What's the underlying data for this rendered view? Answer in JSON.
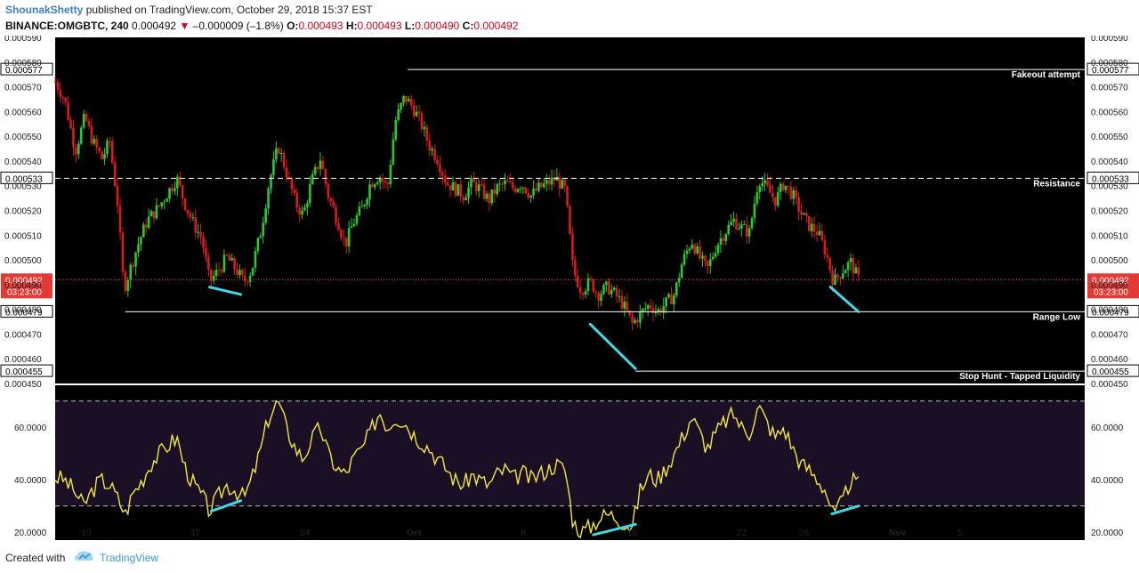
{
  "header": {
    "author": "ShounakShetty",
    "published_text": "published on TradingView.com, October 29, 2018 15:37 EST",
    "symbol": "BINANCE:OMGBTC, 240",
    "last": "0.000492",
    "change_arrow": "▼",
    "change": "–0.000009 (–1.8%)",
    "o_label": "O:",
    "o_value": "0.000493",
    "h_label": "H:",
    "h_value": "0.000493",
    "l_label": "L:",
    "l_value": "0.000490",
    "c_label": "C:",
    "c_value": "0.000492"
  },
  "footer": {
    "created_with": "Created with",
    "brand": "TradingView"
  },
  "colors": {
    "background": "#000000",
    "up": "#2ec72e",
    "down": "#d81b1b",
    "rsi": "#f5e642",
    "divergence": "#3fd9e6",
    "level_line": "#ffffff",
    "current_price": "#e53935",
    "rsi_band": "#1a0f24"
  },
  "chart_data": [
    {
      "type": "candlestick",
      "title": "",
      "ylim": [
        0.00045,
        0.00059
      ],
      "y_ticks": [
        "0.000590",
        "0.000580",
        "0.000570",
        "0.000560",
        "0.000550",
        "0.000540",
        "0.000530",
        "0.000520",
        "0.000510",
        "0.000500",
        "0.000490",
        "0.000480",
        "0.000470",
        "0.000460",
        "0.000450"
      ],
      "x_ticks": [
        "10",
        "17",
        "24",
        "Oct",
        "8",
        "15",
        "22",
        "26",
        "Nov",
        "5"
      ],
      "x_tick_days": [
        10,
        17,
        24,
        31,
        38,
        45,
        52,
        56,
        62,
        66
      ],
      "x_range_days": [
        8,
        74
      ],
      "current_price": "0.000492",
      "countdown": "03:23:00",
      "levels": [
        {
          "label": "Fakeout attempt",
          "price": 0.000577,
          "price_text": "0.000577",
          "from_day": 30.6,
          "style": "solid"
        },
        {
          "label": "Resistance",
          "price": 0.000533,
          "price_text": "0.000533",
          "from_day": 8,
          "style": "dashed"
        },
        {
          "label": "Range Low",
          "price": 0.000479,
          "price_text": "0.000479",
          "from_day": 12.5,
          "style": "solid"
        },
        {
          "label": "Stop Hunt - Tapped Liquidity",
          "price": 0.000455,
          "price_text": "0.000455",
          "from_day": 45.2,
          "style": "solid"
        }
      ],
      "divergence_lines": [
        {
          "x1": 17.9,
          "y1": 0.000489,
          "x2": 19.9,
          "y2": 0.000486
        },
        {
          "x1": 42.3,
          "y1": 0.000474,
          "x2": 45.2,
          "y2": 0.000456
        },
        {
          "x1": 57.7,
          "y1": 0.000489,
          "x2": 59.5,
          "y2": 0.000479
        }
      ],
      "price_path": [
        [
          8.0,
          0.000572
        ],
        [
          8.6,
          0.000565
        ],
        [
          9.3,
          0.000544
        ],
        [
          9.9,
          0.000558
        ],
        [
          10.4,
          0.000548
        ],
        [
          11.0,
          0.000541
        ],
        [
          11.5,
          0.000548
        ],
        [
          12.0,
          0.000523
        ],
        [
          12.4,
          0.000488
        ],
        [
          12.8,
          0.000496
        ],
        [
          13.3,
          0.000506
        ],
        [
          13.9,
          0.000516
        ],
        [
          14.6,
          0.000521
        ],
        [
          15.2,
          0.000527
        ],
        [
          15.8,
          0.000533
        ],
        [
          16.3,
          0.000523
        ],
        [
          16.9,
          0.000514
        ],
        [
          17.4,
          0.000509
        ],
        [
          17.9,
          0.000491
        ],
        [
          18.5,
          0.000496
        ],
        [
          19.0,
          0.000501
        ],
        [
          19.6,
          0.000496
        ],
        [
          20.1,
          0.000491
        ],
        [
          20.6,
          0.000496
        ],
        [
          21.2,
          0.000512
        ],
        [
          21.7,
          0.000531
        ],
        [
          22.3,
          0.000546
        ],
        [
          22.8,
          0.000536
        ],
        [
          23.4,
          0.000523
        ],
        [
          23.9,
          0.000518
        ],
        [
          24.4,
          0.000531
        ],
        [
          25.0,
          0.000541
        ],
        [
          25.5,
          0.000526
        ],
        [
          26.1,
          0.000516
        ],
        [
          26.6,
          0.000506
        ],
        [
          27.1,
          0.000515
        ],
        [
          27.7,
          0.000521
        ],
        [
          28.2,
          0.000531
        ],
        [
          28.8,
          0.000534
        ],
        [
          29.3,
          0.000529
        ],
        [
          29.8,
          0.000556
        ],
        [
          30.4,
          0.000566
        ],
        [
          30.9,
          0.000562
        ],
        [
          31.4,
          0.000556
        ],
        [
          32.0,
          0.000546
        ],
        [
          32.5,
          0.000541
        ],
        [
          33.1,
          0.000531
        ],
        [
          33.6,
          0.000529
        ],
        [
          34.2,
          0.000526
        ],
        [
          34.7,
          0.000531
        ],
        [
          35.2,
          0.000529
        ],
        [
          35.8,
          0.000524
        ],
        [
          36.3,
          0.000529
        ],
        [
          36.9,
          0.000531
        ],
        [
          37.4,
          0.000529
        ],
        [
          37.9,
          0.000531
        ],
        [
          38.5,
          0.000526
        ],
        [
          39.0,
          0.000529
        ],
        [
          39.6,
          0.000531
        ],
        [
          40.1,
          0.000533
        ],
        [
          40.7,
          0.000528
        ],
        [
          41.2,
          0.000496
        ],
        [
          41.7,
          0.000488
        ],
        [
          42.3,
          0.000491
        ],
        [
          42.8,
          0.000486
        ],
        [
          43.4,
          0.000489
        ],
        [
          43.9,
          0.000486
        ],
        [
          44.4,
          0.000482
        ],
        [
          45.0,
          0.000474
        ],
        [
          45.5,
          0.000478
        ],
        [
          46.1,
          0.000482
        ],
        [
          46.6,
          0.000479
        ],
        [
          47.1,
          0.000482
        ],
        [
          47.7,
          0.000486
        ],
        [
          48.2,
          0.000499
        ],
        [
          48.8,
          0.000508
        ],
        [
          49.3,
          0.000501
        ],
        [
          49.8,
          0.000496
        ],
        [
          50.4,
          0.000506
        ],
        [
          50.9,
          0.000511
        ],
        [
          51.5,
          0.000516
        ],
        [
          52.0,
          0.000513
        ],
        [
          52.5,
          0.000511
        ],
        [
          53.1,
          0.000533
        ],
        [
          53.6,
          0.000529
        ],
        [
          54.2,
          0.000524
        ],
        [
          54.7,
          0.000531
        ],
        [
          55.3,
          0.000526
        ],
        [
          55.8,
          0.000519
        ],
        [
          56.3,
          0.000514
        ],
        [
          56.9,
          0.000511
        ],
        [
          57.4,
          0.000503
        ],
        [
          57.9,
          0.000491
        ],
        [
          58.5,
          0.000496
        ],
        [
          59.0,
          0.000499
        ],
        [
          59.5,
          0.000492
        ]
      ]
    },
    {
      "type": "line",
      "title": "",
      "series_name": "",
      "ylim": [
        17,
        76
      ],
      "y_ticks": [
        "60.0000",
        "40.0000",
        "20.0000"
      ],
      "band": [
        30,
        70
      ],
      "divergence_lines": [
        {
          "x1": 18.0,
          "y1": 28,
          "x2": 19.9,
          "y2": 32
        },
        {
          "x1": 42.5,
          "y1": 19,
          "x2": 45.2,
          "y2": 23
        },
        {
          "x1": 57.8,
          "y1": 27,
          "x2": 59.5,
          "y2": 30
        }
      ],
      "values_path": [
        [
          8.0,
          41
        ],
        [
          8.6,
          40
        ],
        [
          9.2,
          36
        ],
        [
          9.8,
          30
        ],
        [
          10.4,
          36
        ],
        [
          10.9,
          40
        ],
        [
          11.5,
          38
        ],
        [
          12.0,
          33
        ],
        [
          12.5,
          27
        ],
        [
          13.0,
          35
        ],
        [
          13.6,
          40
        ],
        [
          14.1,
          46
        ],
        [
          14.7,
          50
        ],
        [
          15.2,
          53
        ],
        [
          15.8,
          56
        ],
        [
          16.3,
          45
        ],
        [
          16.9,
          38
        ],
        [
          17.4,
          34
        ],
        [
          17.9,
          28
        ],
        [
          18.5,
          34
        ],
        [
          19.0,
          38
        ],
        [
          19.6,
          36
        ],
        [
          20.1,
          33
        ],
        [
          20.6,
          40
        ],
        [
          21.2,
          52
        ],
        [
          21.7,
          64
        ],
        [
          22.3,
          70
        ],
        [
          22.8,
          60
        ],
        [
          23.4,
          52
        ],
        [
          23.9,
          48
        ],
        [
          24.4,
          55
        ],
        [
          25.0,
          60
        ],
        [
          25.5,
          50
        ],
        [
          26.1,
          44
        ],
        [
          26.6,
          42
        ],
        [
          27.1,
          48
        ],
        [
          27.7,
          52
        ],
        [
          28.2,
          58
        ],
        [
          28.8,
          66
        ],
        [
          29.3,
          60
        ],
        [
          29.8,
          64
        ],
        [
          30.4,
          62
        ],
        [
          30.9,
          58
        ],
        [
          31.4,
          55
        ],
        [
          32.0,
          52
        ],
        [
          32.5,
          48
        ],
        [
          33.1,
          44
        ],
        [
          33.6,
          40
        ],
        [
          34.2,
          38
        ],
        [
          34.7,
          42
        ],
        [
          35.2,
          40
        ],
        [
          35.8,
          38
        ],
        [
          36.3,
          42
        ],
        [
          36.9,
          44
        ],
        [
          37.4,
          40
        ],
        [
          37.9,
          43
        ],
        [
          38.5,
          40
        ],
        [
          39.0,
          42
        ],
        [
          39.6,
          44
        ],
        [
          40.1,
          46
        ],
        [
          40.7,
          44
        ],
        [
          41.2,
          24
        ],
        [
          41.7,
          20
        ],
        [
          42.3,
          22
        ],
        [
          42.8,
          25
        ],
        [
          43.4,
          27
        ],
        [
          43.9,
          26
        ],
        [
          44.4,
          24
        ],
        [
          45.0,
          22
        ],
        [
          45.5,
          36
        ],
        [
          46.1,
          42
        ],
        [
          46.6,
          40
        ],
        [
          47.1,
          44
        ],
        [
          47.7,
          50
        ],
        [
          48.2,
          56
        ],
        [
          48.8,
          64
        ],
        [
          49.3,
          58
        ],
        [
          49.8,
          52
        ],
        [
          50.4,
          58
        ],
        [
          50.9,
          62
        ],
        [
          51.5,
          65
        ],
        [
          52.0,
          60
        ],
        [
          52.5,
          58
        ],
        [
          53.1,
          68
        ],
        [
          53.6,
          62
        ],
        [
          54.2,
          56
        ],
        [
          54.7,
          60
        ],
        [
          55.3,
          52
        ],
        [
          55.8,
          46
        ],
        [
          56.3,
          44
        ],
        [
          56.9,
          40
        ],
        [
          57.4,
          36
        ],
        [
          57.9,
          26
        ],
        [
          58.5,
          32
        ],
        [
          59.0,
          40
        ],
        [
          59.5,
          38
        ]
      ]
    }
  ]
}
